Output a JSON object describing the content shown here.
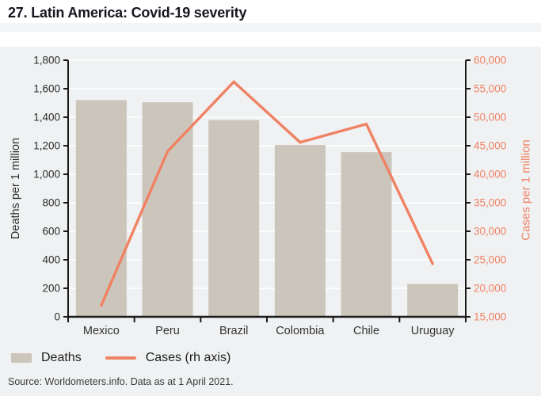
{
  "header": {
    "title": "27. Latin America: Covid-19 severity"
  },
  "legend": {
    "deaths_label": "Deaths",
    "cases_label": "Cases (rh axis)"
  },
  "source": {
    "text": "Source: Worldometers.info. Data as at 1 April 2021."
  },
  "colors": {
    "bar_fill": "#ccc5bb",
    "line_stroke": "#f08264",
    "axis_line": "#1a1a1a",
    "gridline": "#ffffff",
    "left_tick_text": "#2e2e2e",
    "right_tick_text": "#f08264",
    "category_text": "#333333",
    "panel_bg": "#eff1f2"
  },
  "chart_data": {
    "type": "bar",
    "subtype": "bar-and-line-dual-axis",
    "title": "27. Latin America: Covid-19 severity",
    "categories": [
      "Mexico",
      "Peru",
      "Brazil",
      "Colombia",
      "Chile",
      "Uruguay"
    ],
    "series": [
      {
        "name": "Deaths",
        "render": "bar",
        "axis": "left",
        "values": [
          1520,
          1505,
          1380,
          1205,
          1155,
          230
        ]
      },
      {
        "name": "Cases (rh axis)",
        "render": "line",
        "axis": "right",
        "values": [
          17000,
          44000,
          56200,
          45600,
          48800,
          24300
        ]
      }
    ],
    "left_axis": {
      "label": "Deaths per 1 million",
      "min": 0,
      "max": 1800,
      "tick_step": 200
    },
    "right_axis": {
      "label": "Cases per 1 million",
      "min": 15000,
      "max": 60000,
      "tick_step": 5000
    },
    "grid": true,
    "legend_position": "bottom-left",
    "source": "Source: Worldometers.info. Data as at 1 April 2021."
  }
}
